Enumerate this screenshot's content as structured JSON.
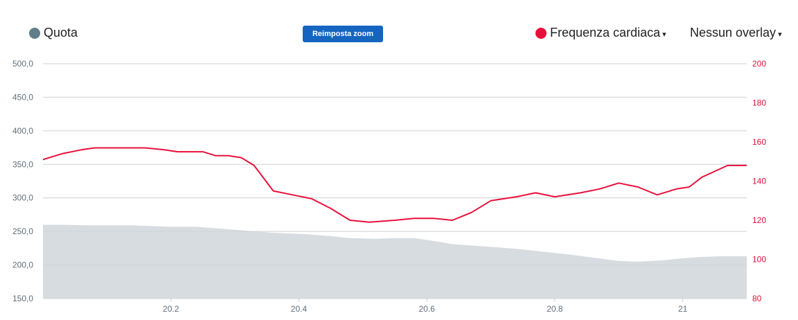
{
  "legend": {
    "left_label": "Quota",
    "left_color": "#607d8b",
    "right_label": "Frequenza cardiaca",
    "right_color": "#e8103a",
    "caret_icon": "▾",
    "overlay_label": "Nessun overlay"
  },
  "zoom_button": {
    "label": "Reimposta zoom",
    "color": "#1565c0"
  },
  "chart_data": {
    "type": "area",
    "x_label": "",
    "xlim": [
      20.0,
      21.1
    ],
    "x_ticks": [
      {
        "value": 20.2,
        "label": "20.2"
      },
      {
        "value": 20.4,
        "label": "20.4"
      },
      {
        "value": 20.6,
        "label": "20.6"
      },
      {
        "value": 20.8,
        "label": "20.8"
      },
      {
        "value": 21.0,
        "label": "21"
      }
    ],
    "y_left": {
      "ylim": [
        150,
        500
      ],
      "ticks": [
        "500,0",
        "450,0",
        "400,0",
        "350,0",
        "300,0",
        "250,0",
        "200,0",
        "150,0"
      ],
      "tick_values": [
        500,
        450,
        400,
        350,
        300,
        250,
        200,
        150
      ]
    },
    "y_right": {
      "ylim": [
        80,
        200
      ],
      "ticks": [
        "200",
        "180",
        "160",
        "140",
        "120",
        "100",
        "80"
      ],
      "tick_values": [
        200,
        180,
        160,
        140,
        120,
        100,
        80
      ]
    },
    "grid": true,
    "series": [
      {
        "name": "Quota",
        "type": "area",
        "axis": "left",
        "color": "#d7dce0",
        "x": [
          20.0,
          20.03,
          20.08,
          20.14,
          20.2,
          20.24,
          20.28,
          20.32,
          20.36,
          20.41,
          20.45,
          20.48,
          20.52,
          20.55,
          20.58,
          20.61,
          20.64,
          20.67,
          20.7,
          20.74,
          20.78,
          20.82,
          20.86,
          20.9,
          20.93,
          20.97,
          21.0,
          21.03,
          21.06,
          21.1
        ],
        "y": [
          260,
          260,
          259,
          259,
          257,
          257,
          254,
          251,
          248,
          246,
          243,
          240,
          239,
          240,
          240,
          236,
          231,
          229,
          227,
          224,
          220,
          216,
          211,
          206,
          205,
          207,
          210,
          212,
          213,
          213
        ]
      },
      {
        "name": "Frequenza cardiaca",
        "type": "line",
        "axis": "right",
        "color": "#e8103a",
        "x": [
          20.0,
          20.01,
          20.03,
          20.06,
          20.08,
          20.11,
          20.14,
          20.16,
          20.19,
          20.21,
          20.23,
          20.25,
          20.27,
          20.29,
          20.31,
          20.33,
          20.36,
          20.39,
          20.42,
          20.45,
          20.48,
          20.51,
          20.55,
          20.58,
          20.61,
          20.64,
          20.67,
          20.7,
          20.74,
          20.77,
          20.8,
          20.84,
          20.87,
          20.9,
          20.93,
          20.96,
          20.99,
          21.01,
          21.03,
          21.05,
          21.07,
          21.09,
          21.1
        ],
        "y": [
          151,
          152,
          154,
          156,
          157,
          157,
          157,
          157,
          156,
          155,
          155,
          155,
          153,
          153,
          152,
          148,
          135,
          133,
          131,
          126,
          120,
          119,
          120,
          121,
          121,
          120,
          124,
          130,
          132,
          134,
          132,
          134,
          136,
          139,
          137,
          133,
          136,
          137,
          142,
          145,
          148,
          148,
          148
        ]
      }
    ]
  }
}
